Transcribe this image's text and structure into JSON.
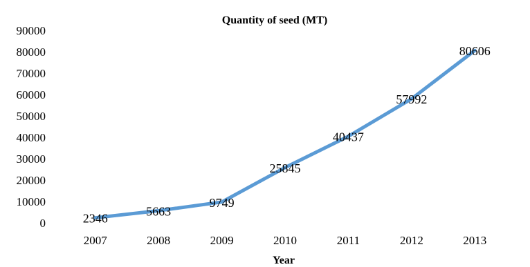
{
  "chart_data": {
    "type": "line",
    "title": "Quantity of seed (MT)",
    "xlabel": "Year",
    "ylabel": "",
    "categories": [
      "2007",
      "2008",
      "2009",
      "2010",
      "2011",
      "2012",
      "2013"
    ],
    "series": [
      {
        "values": [
          2346,
          5663,
          9749,
          25845,
          40437,
          57992,
          80606
        ]
      }
    ],
    "data_labels": [
      "2346",
      "5663",
      "9749",
      "25845",
      "40437",
      "57992",
      "80606"
    ],
    "ylim": [
      0,
      90000
    ],
    "yticks": [
      "0",
      "10000",
      "20000",
      "30000",
      "40000",
      "50000",
      "60000",
      "70000",
      "80000",
      "90000"
    ],
    "line_color": "#5b9bd5",
    "grid": false,
    "legend": "none"
  }
}
